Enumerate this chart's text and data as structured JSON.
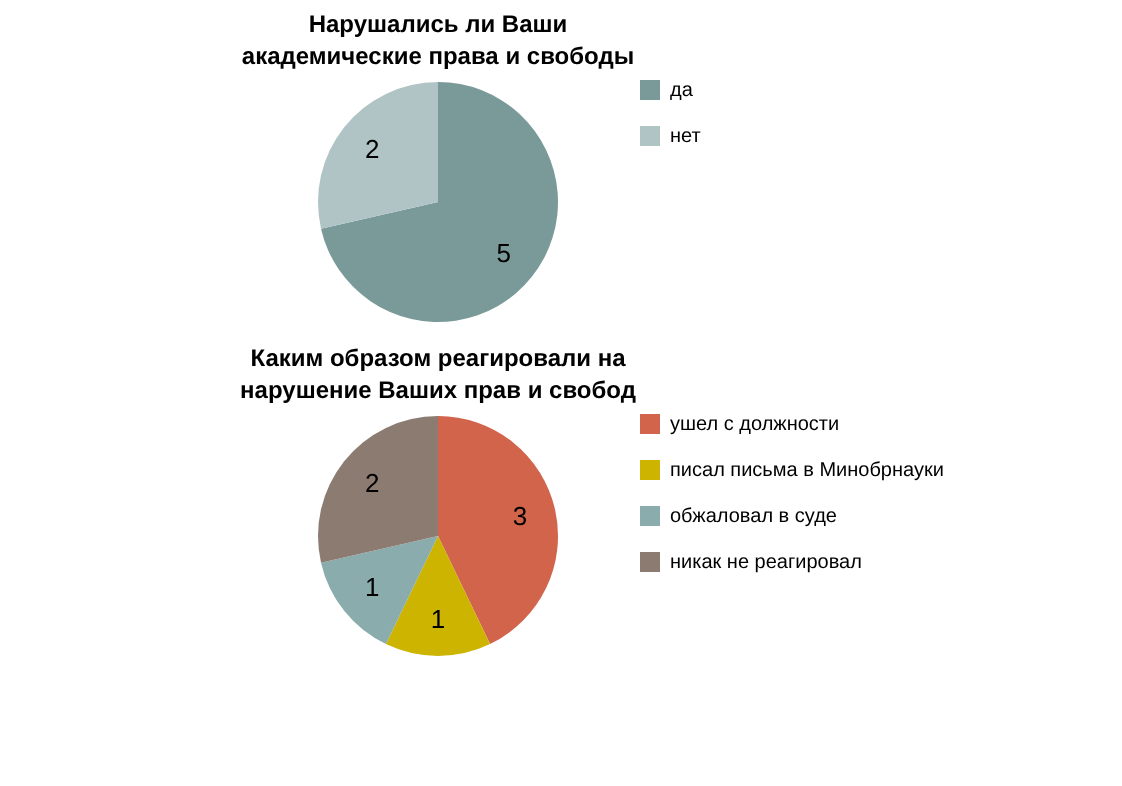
{
  "chart_data": [
    {
      "type": "pie",
      "title": "Нарушались ли Ваши академические права и свободы",
      "categories": [
        "да",
        "нет"
      ],
      "values": [
        5,
        2
      ],
      "colors": [
        "#7a9a9a",
        "#b0c4c6"
      ],
      "data_labels": true,
      "legend": "right"
    },
    {
      "type": "pie",
      "title": "Каким образом реагировали на нарушение Ваших прав и свобод",
      "categories": [
        "ушел с должности",
        "писал письма в Минобрнауки",
        "обжаловал в суде",
        "никак не реагировал"
      ],
      "values": [
        3,
        1,
        1,
        2
      ],
      "colors": [
        "#d2644b",
        "#ccb400",
        "#8aacac",
        "#8c7b70"
      ],
      "data_labels": true,
      "legend": "right"
    }
  ]
}
